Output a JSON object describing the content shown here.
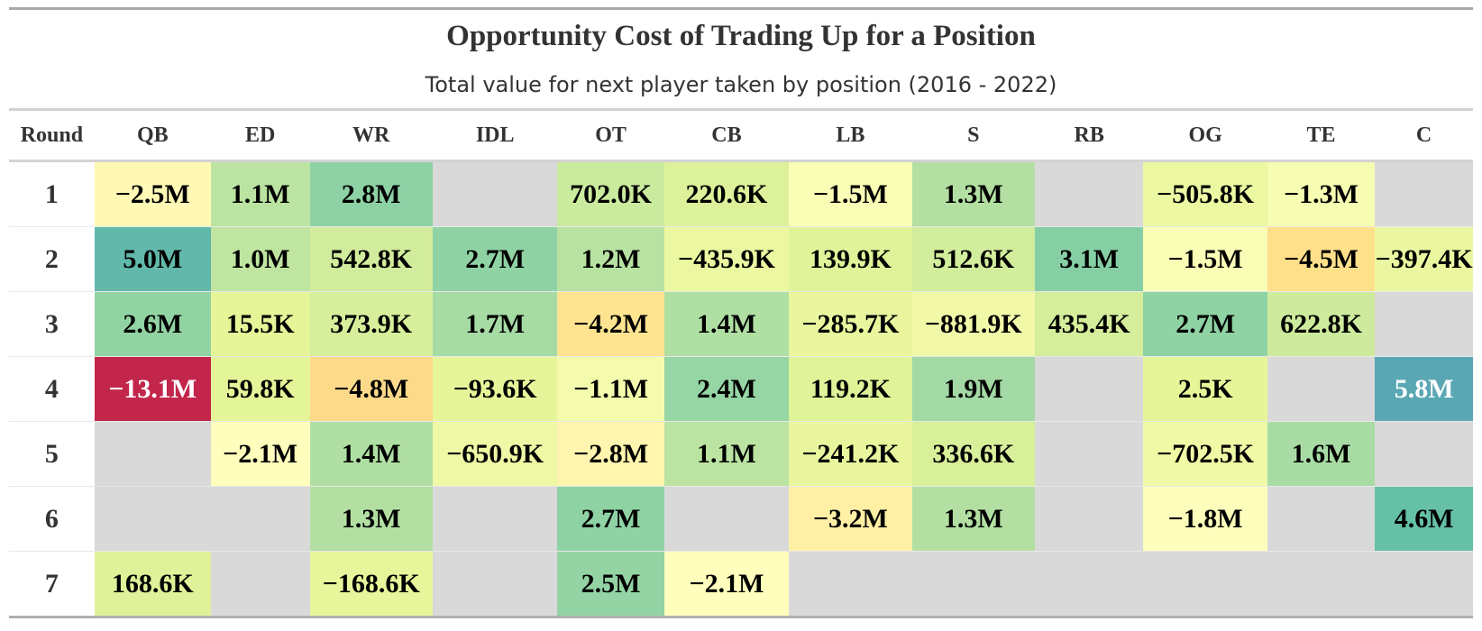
{
  "chart_data": {
    "type": "heatmap",
    "title": "Opportunity Cost of Trading Up for a Position",
    "subtitle": "Total value for next player taken by position (2016 - 2022)",
    "row_header": "Round",
    "columns": [
      "QB",
      "ED",
      "WR",
      "IDL",
      "OT",
      "CB",
      "LB",
      "S",
      "RB",
      "OG",
      "TE",
      "C"
    ],
    "rows": [
      {
        "round": "1",
        "labels": [
          "−2.5M",
          "1.1M",
          "2.8M",
          "",
          "702.0K",
          "220.6K",
          "−1.5M",
          "1.3M",
          "",
          "−505.8K",
          "−1.3M",
          ""
        ],
        "values": [
          -2500000,
          1100000,
          2800000,
          null,
          702000,
          220600,
          -1500000,
          1300000,
          null,
          -505800,
          -1300000,
          null
        ]
      },
      {
        "round": "2",
        "labels": [
          "5.0M",
          "1.0M",
          "542.8K",
          "2.7M",
          "1.2M",
          "−435.9K",
          "139.9K",
          "512.6K",
          "3.1M",
          "−1.5M",
          "−4.5M",
          "−397.4K"
        ],
        "values": [
          5000000,
          1000000,
          542800,
          2700000,
          1200000,
          -435900,
          139900,
          512600,
          3100000,
          -1500000,
          -4500000,
          -397400
        ]
      },
      {
        "round": "3",
        "labels": [
          "2.6M",
          "15.5K",
          "373.9K",
          "1.7M",
          "−4.2M",
          "1.4M",
          "−285.7K",
          "−881.9K",
          "435.4K",
          "2.7M",
          "622.8K",
          ""
        ],
        "values": [
          2600000,
          15500,
          373900,
          1700000,
          -4200000,
          1400000,
          -285700,
          -881900,
          435400,
          2700000,
          622800,
          null
        ]
      },
      {
        "round": "4",
        "labels": [
          "−13.1M",
          "59.8K",
          "−4.8M",
          "−93.6K",
          "−1.1M",
          "2.4M",
          "119.2K",
          "1.9M",
          "",
          "2.5K",
          "",
          "5.8M"
        ],
        "values": [
          -13100000,
          59800,
          -4800000,
          -93600,
          -1100000,
          2400000,
          119200,
          1900000,
          null,
          2500,
          null,
          5800000
        ]
      },
      {
        "round": "5",
        "labels": [
          "",
          "−2.1M",
          "1.4M",
          "−650.9K",
          "−2.8M",
          "1.1M",
          "−241.2K",
          "336.6K",
          "",
          "−702.5K",
          "1.6M",
          ""
        ],
        "values": [
          null,
          -2100000,
          1400000,
          -650900,
          -2800000,
          1100000,
          -241200,
          336600,
          null,
          -702500,
          1600000,
          null
        ]
      },
      {
        "round": "6",
        "labels": [
          "",
          "",
          "1.3M",
          "",
          "2.7M",
          "",
          "−3.2M",
          "1.3M",
          "",
          "−1.8M",
          "",
          "4.6M"
        ],
        "values": [
          null,
          null,
          1300000,
          null,
          2700000,
          null,
          -3200000,
          1300000,
          null,
          -1800000,
          null,
          4600000
        ]
      },
      {
        "round": "7",
        "labels": [
          "168.6K",
          "",
          "−168.6K",
          "",
          "2.5M",
          "−2.1M",
          "",
          "",
          "",
          "",
          "",
          ""
        ],
        "values": [
          168600,
          null,
          -168600,
          null,
          2500000,
          -2100000,
          null,
          null,
          null,
          null,
          null,
          null
        ]
      }
    ],
    "color_scale": {
      "low": -13100000,
      "high": 5800000,
      "missing_color": "#d9d9d9",
      "stops": [
        "#c2264b",
        "#fee08b",
        "#ffffbf",
        "#e6f598",
        "#abdda4",
        "#66c2a5",
        "#5aa7b4"
      ]
    }
  }
}
